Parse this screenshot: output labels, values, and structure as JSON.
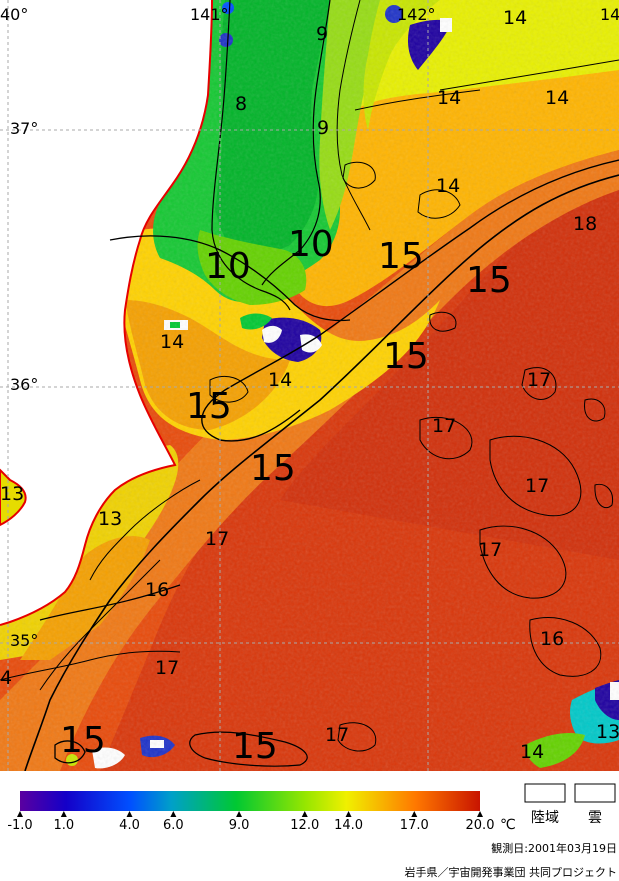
{
  "map": {
    "lon_labels": [
      {
        "text": "40°",
        "id": "lon-140"
      },
      {
        "text": "141°",
        "id": "lon-141"
      },
      {
        "text": "142°",
        "id": "lon-142"
      },
      {
        "text": "14",
        "id": "lon-143-partial"
      }
    ],
    "lat_labels": [
      {
        "text": "37°",
        "id": "lat-37"
      },
      {
        "text": "36°",
        "id": "lat-36"
      },
      {
        "text": "35°",
        "id": "lat-35"
      }
    ],
    "contour_labels": [
      {
        "text": "9",
        "size": "small"
      },
      {
        "text": "14",
        "size": "small"
      },
      {
        "text": "8",
        "size": "small"
      },
      {
        "text": "14",
        "size": "small"
      },
      {
        "text": "14",
        "size": "small"
      },
      {
        "text": "9",
        "size": "small"
      },
      {
        "text": "14",
        "size": "small"
      },
      {
        "text": "18",
        "size": "small"
      },
      {
        "text": "10",
        "size": "large"
      },
      {
        "text": "10",
        "size": "large"
      },
      {
        "text": "15",
        "size": "large"
      },
      {
        "text": "15",
        "size": "large"
      },
      {
        "text": "15",
        "size": "large"
      },
      {
        "text": "14",
        "size": "small"
      },
      {
        "text": "14",
        "size": "small"
      },
      {
        "text": "17",
        "size": "small"
      },
      {
        "text": "15",
        "size": "large"
      },
      {
        "text": "17",
        "size": "small"
      },
      {
        "text": "15",
        "size": "large"
      },
      {
        "text": "17",
        "size": "small"
      },
      {
        "text": "13",
        "size": "small"
      },
      {
        "text": "13",
        "size": "small"
      },
      {
        "text": "17",
        "size": "small"
      },
      {
        "text": "17",
        "size": "small"
      },
      {
        "text": "16",
        "size": "small"
      },
      {
        "text": "16",
        "size": "small"
      },
      {
        "text": "17",
        "size": "small"
      },
      {
        "text": "4",
        "size": "small"
      },
      {
        "text": "15",
        "size": "large"
      },
      {
        "text": "15",
        "size": "large"
      },
      {
        "text": "17",
        "size": "small"
      },
      {
        "text": "14",
        "size": "small"
      },
      {
        "text": "13",
        "size": "small"
      }
    ]
  },
  "colorbar": {
    "min": -1.0,
    "max": 20.0,
    "tick_labels": [
      "-1.0",
      "1.0",
      "4.0",
      "6.0",
      "9.0",
      "12.0",
      "14.0",
      "17.0",
      "20.0"
    ],
    "tick_values": [
      -1.0,
      1.0,
      4.0,
      6.0,
      9.0,
      12.0,
      14.0,
      17.0,
      20.0
    ],
    "unit": "℃",
    "colors": [
      "#5a00a0",
      "#0000c8",
      "#0050ff",
      "#00a0c8",
      "#00c832",
      "#64dc00",
      "#f0f000",
      "#ffa000",
      "#ff5000",
      "#c81400"
    ]
  },
  "legend": {
    "land_label": "陸域",
    "cloud_label": "雲"
  },
  "footer": {
    "observation_date": "観測日:2001年03月19日",
    "credit": "岩手県／宇宙開発事業団 共同プロジェクト"
  }
}
